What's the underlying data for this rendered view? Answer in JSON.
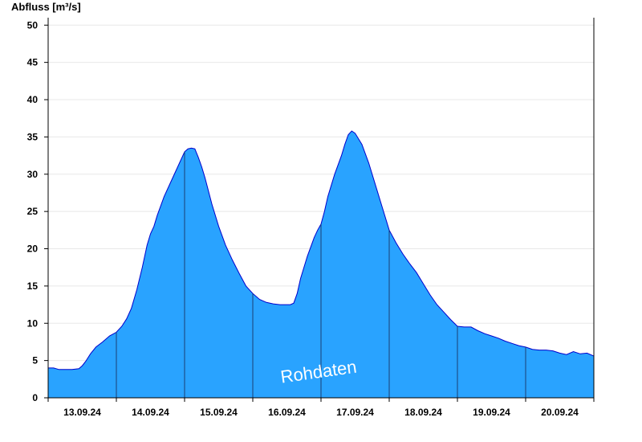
{
  "chart_data": {
    "type": "area",
    "title": "",
    "xlabel": "",
    "ylabel": "Abfluss [m³/s]",
    "ylim": [
      0,
      51
    ],
    "yticks": [
      0,
      5,
      10,
      15,
      20,
      25,
      30,
      35,
      40,
      45,
      50
    ],
    "x_range_days": [
      0,
      8
    ],
    "day_labels": [
      "13.09.24",
      "14.09.24",
      "15.09.24",
      "16.09.24",
      "17.09.24",
      "18.09.24",
      "19.09.24",
      "20.09.24"
    ],
    "grid": true,
    "legend": "none",
    "watermark": "Rohdaten",
    "fill_color": "#29a3ff",
    "line_color": "#0000cc",
    "series": [
      {
        "x": [
          0,
          0.08,
          0.16,
          0.25,
          0.35,
          0.45,
          0.5,
          0.55,
          0.62,
          0.7,
          0.8,
          0.9,
          1.0,
          1.08,
          1.15,
          1.22,
          1.3,
          1.38,
          1.45,
          1.5,
          1.55,
          1.6,
          1.7,
          1.8,
          1.9,
          2.0,
          2.05,
          2.1,
          2.15,
          2.2,
          2.25,
          2.3,
          2.4,
          2.5,
          2.6,
          2.7,
          2.8,
          2.9,
          3.0,
          3.1,
          3.2,
          3.3,
          3.4,
          3.5,
          3.55,
          3.6,
          3.65,
          3.7,
          3.8,
          3.9,
          3.95,
          4.0,
          4.05,
          4.1,
          4.2,
          4.3,
          4.35,
          4.4,
          4.45,
          4.5,
          4.6,
          4.7,
          4.8,
          4.9,
          5.0,
          5.1,
          5.2,
          5.3,
          5.4,
          5.5,
          5.6,
          5.7,
          5.8,
          5.9,
          6.0,
          6.1,
          6.2,
          6.3,
          6.4,
          6.5,
          6.6,
          6.7,
          6.8,
          6.9,
          7.0,
          7.1,
          7.2,
          7.3,
          7.4,
          7.5,
          7.6,
          7.7,
          7.8,
          7.9,
          8.0
        ],
        "values": [
          4.0,
          4.0,
          3.8,
          3.8,
          3.8,
          3.9,
          4.3,
          4.9,
          5.9,
          6.8,
          7.5,
          8.3,
          8.8,
          9.6,
          10.6,
          12.0,
          14.5,
          17.5,
          20.5,
          22.0,
          23.0,
          24.5,
          27.0,
          29.0,
          31.0,
          33.0,
          33.4,
          33.5,
          33.4,
          32.3,
          31.0,
          29.5,
          26.0,
          23.0,
          20.5,
          18.5,
          16.7,
          15.0,
          14.0,
          13.2,
          12.8,
          12.6,
          12.5,
          12.5,
          12.5,
          12.7,
          14.0,
          16.0,
          19.0,
          21.5,
          22.5,
          23.3,
          25.0,
          27.0,
          30.0,
          32.5,
          34.0,
          35.3,
          35.8,
          35.5,
          34.0,
          31.5,
          28.5,
          25.5,
          22.5,
          20.8,
          19.3,
          18.0,
          16.8,
          15.3,
          13.8,
          12.5,
          11.5,
          10.5,
          9.6,
          9.5,
          9.5,
          9.0,
          8.6,
          8.3,
          8.0,
          7.6,
          7.3,
          7.0,
          6.8,
          6.5,
          6.4,
          6.4,
          6.3,
          6.0,
          5.8,
          6.2,
          5.9,
          6.0,
          5.6
        ]
      }
    ]
  }
}
